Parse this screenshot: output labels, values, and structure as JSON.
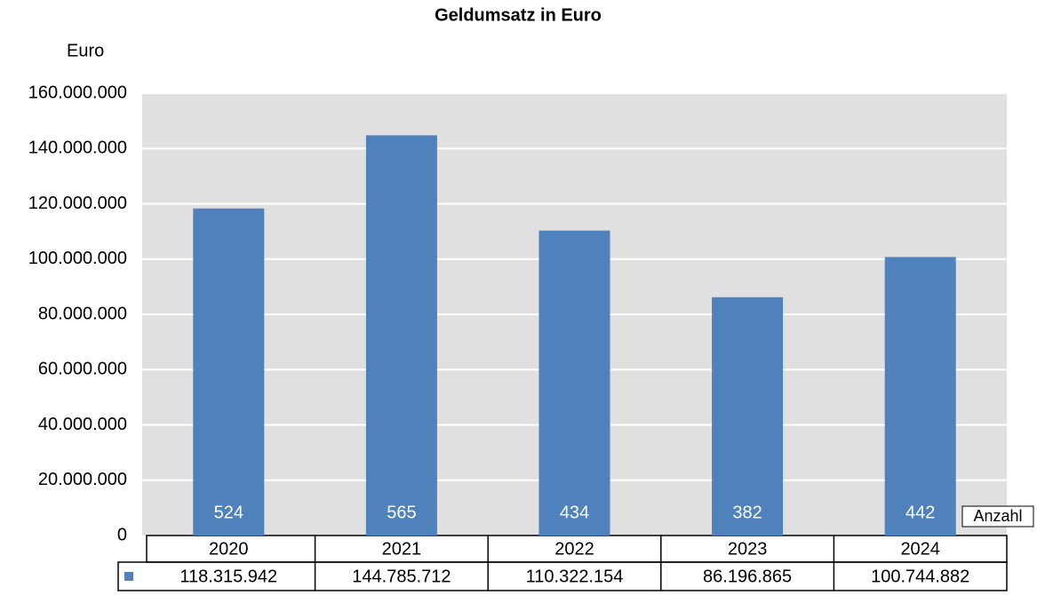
{
  "chart_data": {
    "type": "bar",
    "title": "Geldumsatz in Euro",
    "y_label": "Euro",
    "categories": [
      "2020",
      "2021",
      "2022",
      "2023",
      "2024"
    ],
    "values": [
      118315942,
      144785712,
      110322154,
      86196865,
      100744882
    ],
    "value_labels": [
      "118.315.942",
      "144.785.712",
      "110.322.154",
      "86.196.865",
      "100.744.882"
    ],
    "color": "#4f81bd",
    "counts": {
      "name": "Anzahl",
      "values": [
        524,
        565,
        434,
        382,
        442
      ]
    },
    "ylim": [
      0,
      160000000
    ],
    "yticks": [
      0,
      {
        "value": 20000000,
        "label": "20.000.000"
      },
      {
        "value": 40000000,
        "label": "40.000.000"
      },
      {
        "value": 60000000,
        "label": "60.000.000"
      },
      {
        "value": 80000000,
        "label": "80.000.000"
      },
      {
        "value": 100000000,
        "label": "100.000.000"
      },
      {
        "value": 120000000,
        "label": "120.000.000"
      },
      {
        "value": 140000000,
        "label": "140.000.000"
      },
      {
        "value": 160000000,
        "label": "160.000.000"
      }
    ],
    "grid": true
  }
}
